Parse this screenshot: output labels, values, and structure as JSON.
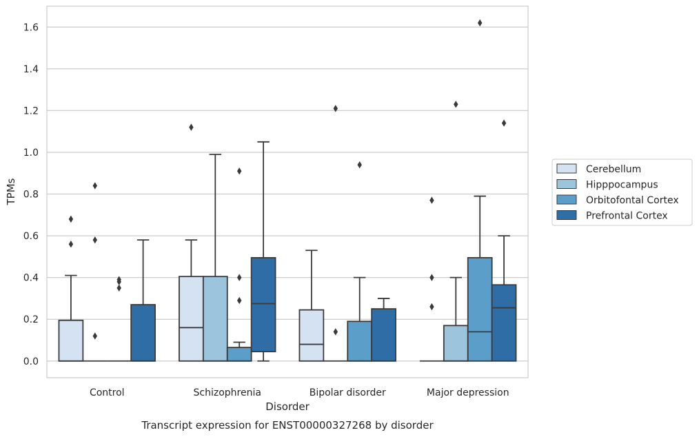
{
  "chart_data": {
    "type": "box",
    "title": "",
    "caption": "Transcript expression for ENST00000327268 by disorder",
    "xlabel": "Disorder",
    "ylabel": "TPMs",
    "ylim": [
      -0.08,
      1.7
    ],
    "yticks": [
      "0.0",
      "0.2",
      "0.4",
      "0.6",
      "0.8",
      "1.0",
      "1.2",
      "1.4",
      "1.6"
    ],
    "grid": "horizontal",
    "legend_position": "right",
    "categories": [
      "Control",
      "Schizophrenia",
      "Bipolar disorder",
      "Major depression"
    ],
    "series": [
      {
        "name": "Cerebellum",
        "color": "#d4e2f1",
        "boxes": [
          {
            "min": 0.0,
            "q1": 0.0,
            "median": 0.0,
            "q3": 0.195,
            "max": 0.41,
            "outliers": [
              0.56,
              0.68
            ]
          },
          {
            "min": 0.0,
            "q1": 0.0,
            "median": 0.16,
            "q3": 0.405,
            "max": 0.58,
            "outliers": [
              1.12
            ]
          },
          {
            "min": 0.0,
            "q1": 0.0,
            "median": 0.08,
            "q3": 0.245,
            "max": 0.53,
            "outliers": []
          },
          {
            "min": 0.0,
            "q1": 0.0,
            "median": 0.0,
            "q3": 0.0,
            "max": 0.0,
            "outliers": [
              0.26,
              0.4,
              0.77
            ]
          }
        ]
      },
      {
        "name": "Hipppocampus",
        "color": "#9cc4dc",
        "boxes": [
          {
            "min": 0.0,
            "q1": 0.0,
            "median": 0.0,
            "q3": 0.0,
            "max": 0.0,
            "outliers": [
              0.12,
              0.58,
              0.84
            ]
          },
          {
            "min": 0.0,
            "q1": 0.0,
            "median": 0.0,
            "q3": 0.405,
            "max": 0.99,
            "outliers": []
          },
          {
            "min": 0.0,
            "q1": 0.0,
            "median": 0.0,
            "q3": 0.0,
            "max": 0.0,
            "outliers": [
              0.14,
              1.21
            ]
          },
          {
            "min": 0.0,
            "q1": 0.0,
            "median": 0.0,
            "q3": 0.17,
            "max": 0.4,
            "outliers": [
              1.23
            ]
          }
        ]
      },
      {
        "name": "Orbitofontal Cortex",
        "color": "#5a9ec9",
        "boxes": [
          {
            "min": 0.0,
            "q1": 0.0,
            "median": 0.0,
            "q3": 0.0,
            "max": 0.0,
            "outliers": [
              0.35,
              0.38,
              0.39
            ]
          },
          {
            "min": 0.0,
            "q1": 0.0,
            "median": 0.0,
            "q3": 0.065,
            "max": 0.09,
            "outliers": [
              0.29,
              0.4,
              0.91
            ]
          },
          {
            "min": 0.0,
            "q1": 0.0,
            "median": 0.0,
            "q3": 0.19,
            "max": 0.4,
            "outliers": [
              0.94
            ]
          },
          {
            "min": 0.0,
            "q1": 0.0,
            "median": 0.14,
            "q3": 0.495,
            "max": 0.79,
            "outliers": [
              1.62
            ]
          }
        ]
      },
      {
        "name": "Prefrontal Cortex",
        "color": "#2e6da6",
        "boxes": [
          {
            "min": 0.0,
            "q1": 0.0,
            "median": 0.0,
            "q3": 0.27,
            "max": 0.58,
            "outliers": []
          },
          {
            "min": 0.0,
            "q1": 0.045,
            "median": 0.275,
            "q3": 0.495,
            "max": 1.05,
            "outliers": []
          },
          {
            "min": 0.0,
            "q1": 0.0,
            "median": 0.0,
            "q3": 0.25,
            "max": 0.3,
            "outliers": []
          },
          {
            "min": 0.0,
            "q1": 0.0,
            "median": 0.255,
            "q3": 0.365,
            "max": 0.6,
            "outliers": [
              1.14
            ]
          }
        ]
      }
    ]
  }
}
